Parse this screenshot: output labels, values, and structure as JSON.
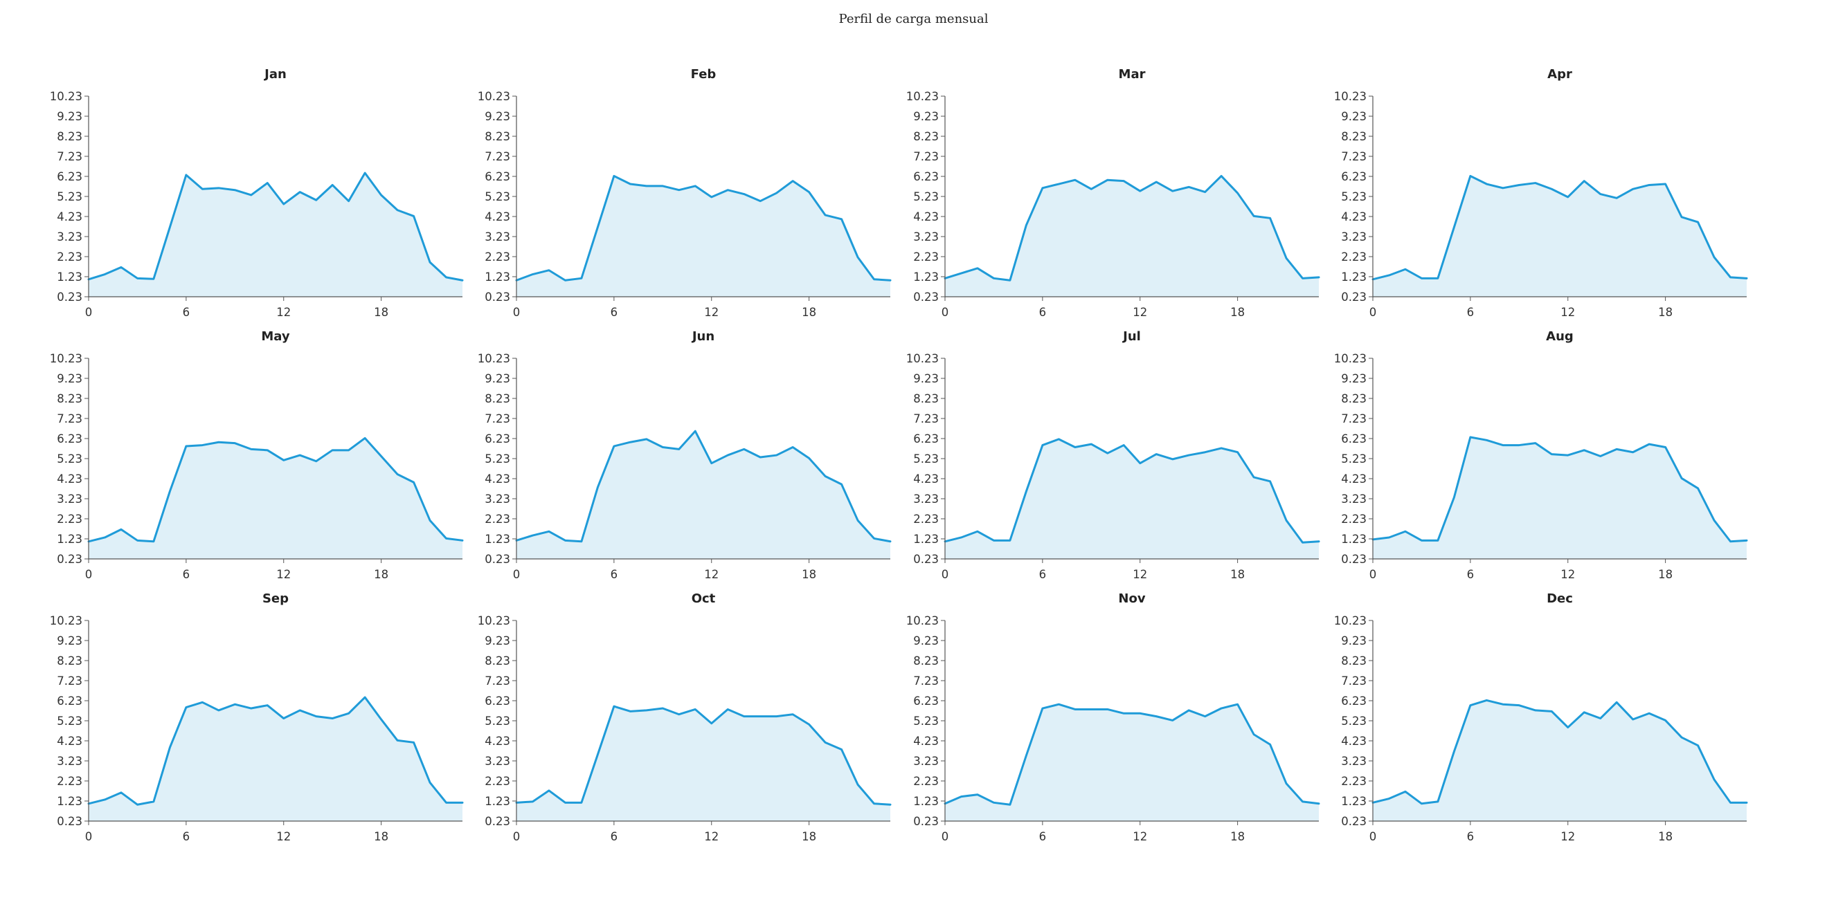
{
  "page_title": "Perfil de carga mensual",
  "colors": {
    "line": "#1f9bd8",
    "fill": "#dff0f8",
    "axis": "#555555"
  },
  "chart_data": [
    {
      "type": "area",
      "title": "Jan",
      "x": [
        0,
        1,
        2,
        3,
        4,
        5,
        6,
        7,
        8,
        9,
        10,
        11,
        12,
        13,
        14,
        15,
        16,
        17,
        18,
        19,
        20,
        21,
        22,
        23
      ],
      "y": [
        1.1,
        1.35,
        1.7,
        1.15,
        1.12,
        3.7,
        6.3,
        5.6,
        5.65,
        5.55,
        5.3,
        5.9,
        4.85,
        5.45,
        5.05,
        5.8,
        5.0,
        6.4,
        5.3,
        4.55,
        4.25,
        1.95,
        1.2,
        1.05
      ],
      "x_ticks": [
        0,
        6,
        12,
        18
      ],
      "y_ticks": [
        0.23,
        1.23,
        2.23,
        3.23,
        4.23,
        5.23,
        6.23,
        7.23,
        8.23,
        9.23,
        10.23
      ],
      "xlim": [
        0,
        23
      ],
      "ylim": [
        0.23,
        10.23
      ]
    },
    {
      "type": "area",
      "title": "Feb",
      "x": [
        0,
        1,
        2,
        3,
        4,
        5,
        6,
        7,
        8,
        9,
        10,
        11,
        12,
        13,
        14,
        15,
        16,
        17,
        18,
        19,
        20,
        21,
        22,
        23
      ],
      "y": [
        1.05,
        1.35,
        1.55,
        1.05,
        1.15,
        3.7,
        6.25,
        5.85,
        5.75,
        5.75,
        5.55,
        5.75,
        5.2,
        5.55,
        5.35,
        5.0,
        5.4,
        6.0,
        5.45,
        4.3,
        4.1,
        2.2,
        1.1,
        1.05
      ],
      "x_ticks": [
        0,
        6,
        12,
        18
      ],
      "y_ticks": [
        0.23,
        1.23,
        2.23,
        3.23,
        4.23,
        5.23,
        6.23,
        7.23,
        8.23,
        9.23,
        10.23
      ],
      "xlim": [
        0,
        23
      ],
      "ylim": [
        0.23,
        10.23
      ]
    },
    {
      "type": "area",
      "title": "Mar",
      "x": [
        0,
        1,
        2,
        3,
        4,
        5,
        6,
        7,
        8,
        9,
        10,
        11,
        12,
        13,
        14,
        15,
        16,
        17,
        18,
        19,
        20,
        21,
        22,
        23
      ],
      "y": [
        1.15,
        1.4,
        1.65,
        1.15,
        1.05,
        3.8,
        5.65,
        5.85,
        6.05,
        5.6,
        6.05,
        6.0,
        5.5,
        5.95,
        5.5,
        5.7,
        5.45,
        6.25,
        5.4,
        4.25,
        4.15,
        2.15,
        1.15,
        1.2
      ],
      "x_ticks": [
        0,
        6,
        12,
        18
      ],
      "y_ticks": [
        0.23,
        1.23,
        2.23,
        3.23,
        4.23,
        5.23,
        6.23,
        7.23,
        8.23,
        9.23,
        10.23
      ],
      "xlim": [
        0,
        23
      ],
      "ylim": [
        0.23,
        10.23
      ]
    },
    {
      "type": "area",
      "title": "Apr",
      "x": [
        0,
        1,
        2,
        3,
        4,
        5,
        6,
        7,
        8,
        9,
        10,
        11,
        12,
        13,
        14,
        15,
        16,
        17,
        18,
        19,
        20,
        21,
        22,
        23
      ],
      "y": [
        1.1,
        1.3,
        1.6,
        1.15,
        1.15,
        3.7,
        6.25,
        5.85,
        5.65,
        5.8,
        5.9,
        5.6,
        5.2,
        6.0,
        5.35,
        5.15,
        5.6,
        5.8,
        5.85,
        4.2,
        3.95,
        2.2,
        1.2,
        1.15
      ],
      "x_ticks": [
        0,
        6,
        12,
        18
      ],
      "y_ticks": [
        0.23,
        1.23,
        2.23,
        3.23,
        4.23,
        5.23,
        6.23,
        7.23,
        8.23,
        9.23,
        10.23
      ],
      "xlim": [
        0,
        23
      ],
      "ylim": [
        0.23,
        10.23
      ]
    },
    {
      "type": "area",
      "title": "May",
      "x": [
        0,
        1,
        2,
        3,
        4,
        5,
        6,
        7,
        8,
        9,
        10,
        11,
        12,
        13,
        14,
        15,
        16,
        17,
        18,
        19,
        20,
        21,
        22,
        23
      ],
      "y": [
        1.1,
        1.3,
        1.7,
        1.15,
        1.1,
        3.6,
        5.85,
        5.9,
        6.05,
        6.0,
        5.7,
        5.65,
        5.15,
        5.4,
        5.1,
        5.65,
        5.65,
        6.25,
        5.35,
        4.45,
        4.05,
        2.15,
        1.25,
        1.15
      ],
      "x_ticks": [
        0,
        6,
        12,
        18
      ],
      "y_ticks": [
        0.23,
        1.23,
        2.23,
        3.23,
        4.23,
        5.23,
        6.23,
        7.23,
        8.23,
        9.23,
        10.23
      ],
      "xlim": [
        0,
        23
      ],
      "ylim": [
        0.23,
        10.23
      ]
    },
    {
      "type": "area",
      "title": "Jun",
      "x": [
        0,
        1,
        2,
        3,
        4,
        5,
        6,
        7,
        8,
        9,
        10,
        11,
        12,
        13,
        14,
        15,
        16,
        17,
        18,
        19,
        20,
        21,
        22,
        23
      ],
      "y": [
        1.15,
        1.4,
        1.6,
        1.15,
        1.1,
        3.8,
        5.85,
        6.05,
        6.2,
        5.8,
        5.7,
        6.6,
        5.0,
        5.4,
        5.7,
        5.3,
        5.4,
        5.8,
        5.25,
        4.35,
        3.95,
        2.15,
        1.25,
        1.1
      ],
      "x_ticks": [
        0,
        6,
        12,
        18
      ],
      "y_ticks": [
        0.23,
        1.23,
        2.23,
        3.23,
        4.23,
        5.23,
        6.23,
        7.23,
        8.23,
        9.23,
        10.23
      ],
      "xlim": [
        0,
        23
      ],
      "ylim": [
        0.23,
        10.23
      ]
    },
    {
      "type": "area",
      "title": "Jul",
      "x": [
        0,
        1,
        2,
        3,
        4,
        5,
        6,
        7,
        8,
        9,
        10,
        11,
        12,
        13,
        14,
        15,
        16,
        17,
        18,
        19,
        20,
        21,
        22,
        23
      ],
      "y": [
        1.1,
        1.3,
        1.6,
        1.15,
        1.15,
        3.6,
        5.9,
        6.2,
        5.8,
        5.95,
        5.5,
        5.9,
        5.0,
        5.45,
        5.2,
        5.4,
        5.55,
        5.75,
        5.55,
        4.3,
        4.1,
        2.15,
        1.05,
        1.1
      ],
      "x_ticks": [
        0,
        6,
        12,
        18
      ],
      "y_ticks": [
        0.23,
        1.23,
        2.23,
        3.23,
        4.23,
        5.23,
        6.23,
        7.23,
        8.23,
        9.23,
        10.23
      ],
      "xlim": [
        0,
        23
      ],
      "ylim": [
        0.23,
        10.23
      ]
    },
    {
      "type": "area",
      "title": "Aug",
      "x": [
        0,
        1,
        2,
        3,
        4,
        5,
        6,
        7,
        8,
        9,
        10,
        11,
        12,
        13,
        14,
        15,
        16,
        17,
        18,
        19,
        20,
        21,
        22,
        23
      ],
      "y": [
        1.2,
        1.3,
        1.6,
        1.15,
        1.15,
        3.3,
        6.3,
        6.15,
        5.9,
        5.9,
        6.0,
        5.45,
        5.4,
        5.65,
        5.35,
        5.7,
        5.55,
        5.95,
        5.8,
        4.25,
        3.75,
        2.15,
        1.1,
        1.15
      ],
      "x_ticks": [
        0,
        6,
        12,
        18
      ],
      "y_ticks": [
        0.23,
        1.23,
        2.23,
        3.23,
        4.23,
        5.23,
        6.23,
        7.23,
        8.23,
        9.23,
        10.23
      ],
      "xlim": [
        0,
        23
      ],
      "ylim": [
        0.23,
        10.23
      ]
    },
    {
      "type": "area",
      "title": "Sep",
      "x": [
        0,
        1,
        2,
        3,
        4,
        5,
        6,
        7,
        8,
        9,
        10,
        11,
        12,
        13,
        14,
        15,
        16,
        17,
        18,
        19,
        20,
        21,
        22,
        23
      ],
      "y": [
        1.1,
        1.3,
        1.65,
        1.05,
        1.2,
        3.9,
        5.9,
        6.15,
        5.75,
        6.05,
        5.85,
        6.0,
        5.35,
        5.75,
        5.45,
        5.35,
        5.6,
        6.4,
        5.3,
        4.25,
        4.15,
        2.15,
        1.15,
        1.15
      ],
      "x_ticks": [
        0,
        6,
        12,
        18
      ],
      "y_ticks": [
        0.23,
        1.23,
        2.23,
        3.23,
        4.23,
        5.23,
        6.23,
        7.23,
        8.23,
        9.23,
        10.23
      ],
      "xlim": [
        0,
        23
      ],
      "ylim": [
        0.23,
        10.23
      ]
    },
    {
      "type": "area",
      "title": "Oct",
      "x": [
        0,
        1,
        2,
        3,
        4,
        5,
        6,
        7,
        8,
        9,
        10,
        11,
        12,
        13,
        14,
        15,
        16,
        17,
        18,
        19,
        20,
        21,
        22,
        23
      ],
      "y": [
        1.15,
        1.2,
        1.75,
        1.15,
        1.15,
        3.55,
        5.95,
        5.7,
        5.75,
        5.85,
        5.55,
        5.8,
        5.1,
        5.8,
        5.45,
        5.45,
        5.45,
        5.55,
        5.05,
        4.15,
        3.8,
        2.05,
        1.1,
        1.05
      ],
      "x_ticks": [
        0,
        6,
        12,
        18
      ],
      "y_ticks": [
        0.23,
        1.23,
        2.23,
        3.23,
        4.23,
        5.23,
        6.23,
        7.23,
        8.23,
        9.23,
        10.23
      ],
      "xlim": [
        0,
        23
      ],
      "ylim": [
        0.23,
        10.23
      ]
    },
    {
      "type": "area",
      "title": "Nov",
      "x": [
        0,
        1,
        2,
        3,
        4,
        5,
        6,
        7,
        8,
        9,
        10,
        11,
        12,
        13,
        14,
        15,
        16,
        17,
        18,
        19,
        20,
        21,
        22,
        23
      ],
      "y": [
        1.1,
        1.45,
        1.55,
        1.15,
        1.05,
        3.5,
        5.85,
        6.05,
        5.8,
        5.8,
        5.8,
        5.6,
        5.6,
        5.45,
        5.25,
        5.75,
        5.45,
        5.85,
        6.05,
        4.55,
        4.05,
        2.1,
        1.2,
        1.1
      ],
      "x_ticks": [
        0,
        6,
        12,
        18
      ],
      "y_ticks": [
        0.23,
        1.23,
        2.23,
        3.23,
        4.23,
        5.23,
        6.23,
        7.23,
        8.23,
        9.23,
        10.23
      ],
      "xlim": [
        0,
        23
      ],
      "ylim": [
        0.23,
        10.23
      ]
    },
    {
      "type": "area",
      "title": "Dec",
      "x": [
        0,
        1,
        2,
        3,
        4,
        5,
        6,
        7,
        8,
        9,
        10,
        11,
        12,
        13,
        14,
        15,
        16,
        17,
        18,
        19,
        20,
        21,
        22,
        23
      ],
      "y": [
        1.15,
        1.35,
        1.7,
        1.1,
        1.2,
        3.7,
        6.0,
        6.25,
        6.05,
        6.0,
        5.75,
        5.7,
        4.9,
        5.65,
        5.35,
        6.15,
        5.3,
        5.6,
        5.25,
        4.4,
        4.0,
        2.3,
        1.15,
        1.15
      ],
      "x_ticks": [
        0,
        6,
        12,
        18
      ],
      "y_ticks": [
        0.23,
        1.23,
        2.23,
        3.23,
        4.23,
        5.23,
        6.23,
        7.23,
        8.23,
        9.23,
        10.23
      ],
      "xlim": [
        0,
        23
      ],
      "ylim": [
        0.23,
        10.23
      ]
    }
  ]
}
